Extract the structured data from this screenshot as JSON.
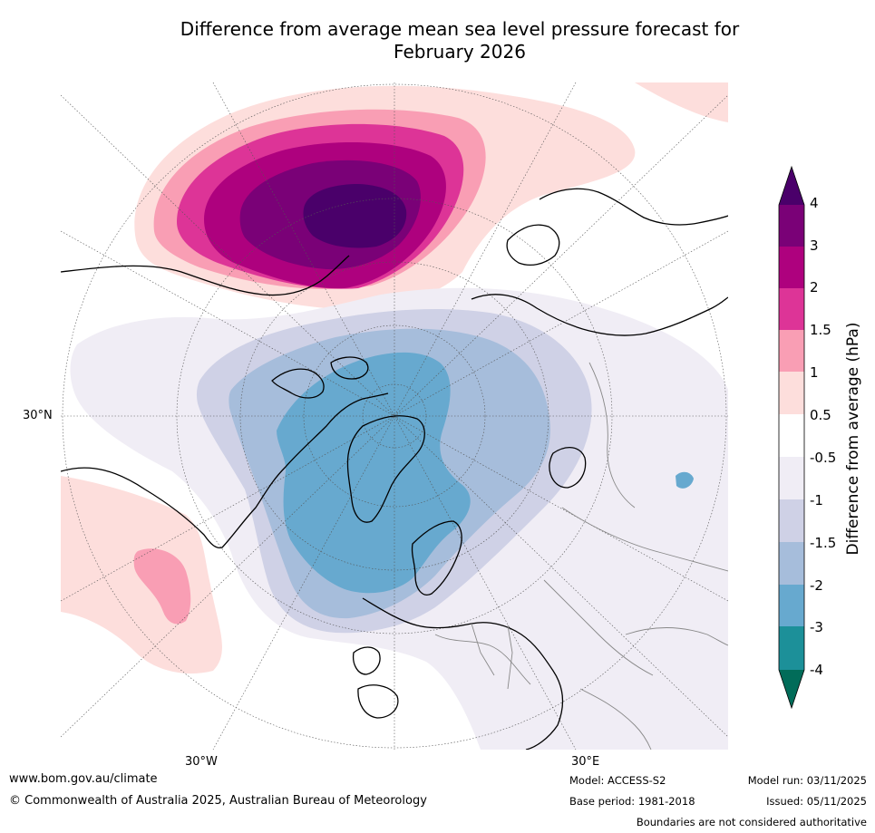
{
  "title": "Difference from average mean sea level pressure forecast for\nFebruary 2026",
  "map": {
    "projection": "north-polar-stereographic",
    "lat_label_left": "30°N",
    "lon_label_bottom_left": "30°W",
    "lon_label_bottom_right": "30°E"
  },
  "colorbar": {
    "title": "Difference from average (hPa)",
    "levels": [
      "4",
      "3",
      "2",
      "1.5",
      "1",
      "0.5",
      "-0.5",
      "-1",
      "-1.5",
      "-2",
      "-3",
      "-4"
    ],
    "colors": {
      "above_4": "#4a006a",
      "c_3_4": "#7a0177",
      "c_2_3": "#ae017e",
      "c_1_5_2": "#dd3497",
      "c_1_1_5": "#f99eb4",
      "c_0_5_1": "#fddedc",
      "c_neutral": "#ffffff",
      "c_m1_m0_5": "#f0edf5",
      "c_m1_5_m1": "#cfd1e6",
      "c_m2_m1_5": "#a6bddb",
      "c_m3_m2": "#67a9cf",
      "c_m4_m3": "#1c9099",
      "below_m4": "#016c59"
    }
  },
  "footer": {
    "website": "www.bom.gov.au/climate",
    "copyright": "© Commonwealth of Australia 2025, Australian Bureau of Meteorology",
    "model": "Model: ACCESS-S2",
    "base_period": "Base period: 1981-2018",
    "model_run": "Model run: 03/11/2025",
    "issued": "Issued: 05/11/2025",
    "disclaimer": "Boundaries are not considered authoritative"
  }
}
